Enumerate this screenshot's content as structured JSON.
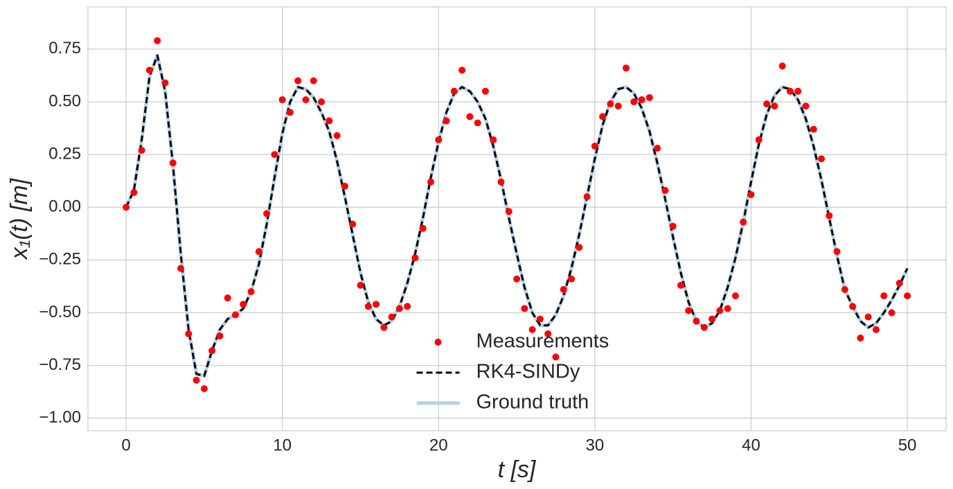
{
  "chart_data": {
    "type": "line",
    "x_label": "t [s]",
    "y_label": "x₁(t) [m]",
    "x": [
      0,
      0.5,
      1,
      1.5,
      2,
      2.5,
      3,
      3.5,
      4,
      4.5,
      5,
      5.5,
      6,
      6.5,
      7,
      7.5,
      8,
      8.5,
      9,
      9.5,
      10,
      10.5,
      11,
      11.5,
      12,
      12.5,
      13,
      13.5,
      14,
      14.5,
      15,
      15.5,
      16,
      16.5,
      17,
      17.5,
      18,
      18.5,
      19,
      19.5,
      20,
      20.5,
      21,
      21.5,
      22,
      22.5,
      23,
      23.5,
      24,
      24.5,
      25,
      25.5,
      26,
      26.5,
      27,
      27.5,
      28,
      28.5,
      29,
      29.5,
      30,
      30.5,
      31,
      31.5,
      32,
      32.5,
      33,
      33.5,
      34,
      34.5,
      35,
      35.5,
      36,
      36.5,
      37,
      37.5,
      38,
      38.5,
      39,
      39.5,
      40,
      40.5,
      41,
      41.5,
      42,
      42.5,
      43,
      43.5,
      44,
      44.5,
      45,
      45.5,
      46,
      46.5,
      47,
      47.5,
      48,
      48.5,
      49,
      49.5,
      50
    ],
    "series": [
      {
        "name": "Measurements",
        "color": "#ff0000",
        "linestyle": "none",
        "marker": "o",
        "values": [
          0,
          0.07,
          0.27,
          0.65,
          0.79,
          0.59,
          0.21,
          -0.29,
          -0.6,
          -0.82,
          -0.86,
          -0.68,
          -0.61,
          -0.43,
          -0.51,
          -0.46,
          -0.4,
          -0.21,
          -0.03,
          0.25,
          0.51,
          0.45,
          0.6,
          0.51,
          0.6,
          0.5,
          0.41,
          0.34,
          0.1,
          -0.08,
          -0.37,
          -0.47,
          -0.46,
          -0.57,
          -0.52,
          -0.48,
          -0.47,
          -0.24,
          -0.1,
          0.12,
          0.32,
          0.41,
          0.55,
          0.65,
          0.43,
          0.4,
          0.55,
          0.32,
          0.12,
          -0.02,
          -0.34,
          -0.48,
          -0.58,
          -0.53,
          -0.6,
          -0.71,
          -0.39,
          -0.34,
          -0.19,
          0.05,
          0.29,
          0.43,
          0.49,
          0.48,
          0.66,
          0.5,
          0.51,
          0.52,
          0.28,
          0.08,
          -0.09,
          -0.37,
          -0.49,
          -0.54,
          -0.57,
          -0.53,
          -0.49,
          -0.48,
          -0.42,
          -0.07,
          0.06,
          0.32,
          0.49,
          0.48,
          0.67,
          0.55,
          0.55,
          0.48,
          0.37,
          0.23,
          -0.04,
          -0.21,
          -0.39,
          -0.47,
          -0.62,
          -0.52,
          -0.58,
          -0.42,
          -0.5,
          -0.36,
          -0.42
        ]
      },
      {
        "name": "RK4-SINDy",
        "color": "#000000",
        "linestyle": "--",
        "values": [
          0,
          0.08,
          0.32,
          0.62,
          0.72,
          0.55,
          0.2,
          -0.22,
          -0.58,
          -0.79,
          -0.8,
          -0.68,
          -0.58,
          -0.53,
          -0.51,
          -0.48,
          -0.4,
          -0.27,
          -0.08,
          0.14,
          0.35,
          0.5,
          0.57,
          0.56,
          0.52,
          0.45,
          0.36,
          0.22,
          0.05,
          -0.13,
          -0.31,
          -0.45,
          -0.53,
          -0.56,
          -0.54,
          -0.47,
          -0.36,
          -0.22,
          -0.05,
          0.14,
          0.31,
          0.45,
          0.54,
          0.57,
          0.55,
          0.5,
          0.42,
          0.29,
          0.13,
          -0.05,
          -0.22,
          -0.38,
          -0.5,
          -0.56,
          -0.56,
          -0.51,
          -0.42,
          -0.29,
          -0.13,
          0.05,
          0.23,
          0.39,
          0.5,
          0.56,
          0.57,
          0.54,
          0.47,
          0.36,
          0.21,
          0.04,
          -0.14,
          -0.31,
          -0.45,
          -0.54,
          -0.57,
          -0.55,
          -0.49,
          -0.38,
          -0.24,
          -0.07,
          0.12,
          0.3,
          0.44,
          0.53,
          0.57,
          0.56,
          0.51,
          0.42,
          0.29,
          0.13,
          -0.05,
          -0.23,
          -0.39,
          -0.47,
          -0.54,
          -0.57,
          -0.55,
          -0.5,
          -0.44,
          -0.37,
          -0.29
        ]
      },
      {
        "name": "Ground truth",
        "color": "#b3d1e6",
        "linestyle": "-",
        "values": [
          0,
          0.08,
          0.32,
          0.62,
          0.72,
          0.55,
          0.2,
          -0.22,
          -0.58,
          -0.79,
          -0.8,
          -0.68,
          -0.58,
          -0.53,
          -0.51,
          -0.48,
          -0.4,
          -0.27,
          -0.08,
          0.14,
          0.35,
          0.5,
          0.57,
          0.56,
          0.52,
          0.45,
          0.36,
          0.22,
          0.05,
          -0.13,
          -0.31,
          -0.45,
          -0.53,
          -0.56,
          -0.54,
          -0.47,
          -0.36,
          -0.22,
          -0.05,
          0.14,
          0.31,
          0.45,
          0.54,
          0.57,
          0.55,
          0.5,
          0.42,
          0.29,
          0.13,
          -0.05,
          -0.22,
          -0.38,
          -0.5,
          -0.56,
          -0.56,
          -0.51,
          -0.42,
          -0.29,
          -0.13,
          0.05,
          0.23,
          0.39,
          0.5,
          0.56,
          0.57,
          0.54,
          0.47,
          0.36,
          0.21,
          0.04,
          -0.14,
          -0.31,
          -0.45,
          -0.54,
          -0.57,
          -0.55,
          -0.49,
          -0.38,
          -0.24,
          -0.07,
          0.12,
          0.3,
          0.44,
          0.53,
          0.57,
          0.56,
          0.51,
          0.42,
          0.29,
          0.13,
          -0.05,
          -0.23,
          -0.39,
          -0.47,
          -0.54,
          -0.57,
          -0.55,
          -0.5,
          -0.44,
          -0.37,
          -0.29
        ]
      }
    ],
    "xlim": [
      -2.44,
      52.48
    ],
    "ylim": [
      -1.06,
      0.95
    ],
    "xticks": [
      0,
      10,
      20,
      30,
      40,
      50
    ],
    "yticks": [
      {
        "value": -1,
        "label": "−1.00"
      },
      {
        "value": -0.75,
        "label": "−0.75"
      },
      {
        "value": -0.5,
        "label": "−0.50"
      },
      {
        "value": -0.25,
        "label": "−0.25"
      },
      {
        "value": 0,
        "label": "0.00"
      },
      0.25,
      {
        "value": 0.5,
        "label": "0.50"
      },
      0.75
    ],
    "grid": true,
    "legend": "lower center"
  }
}
